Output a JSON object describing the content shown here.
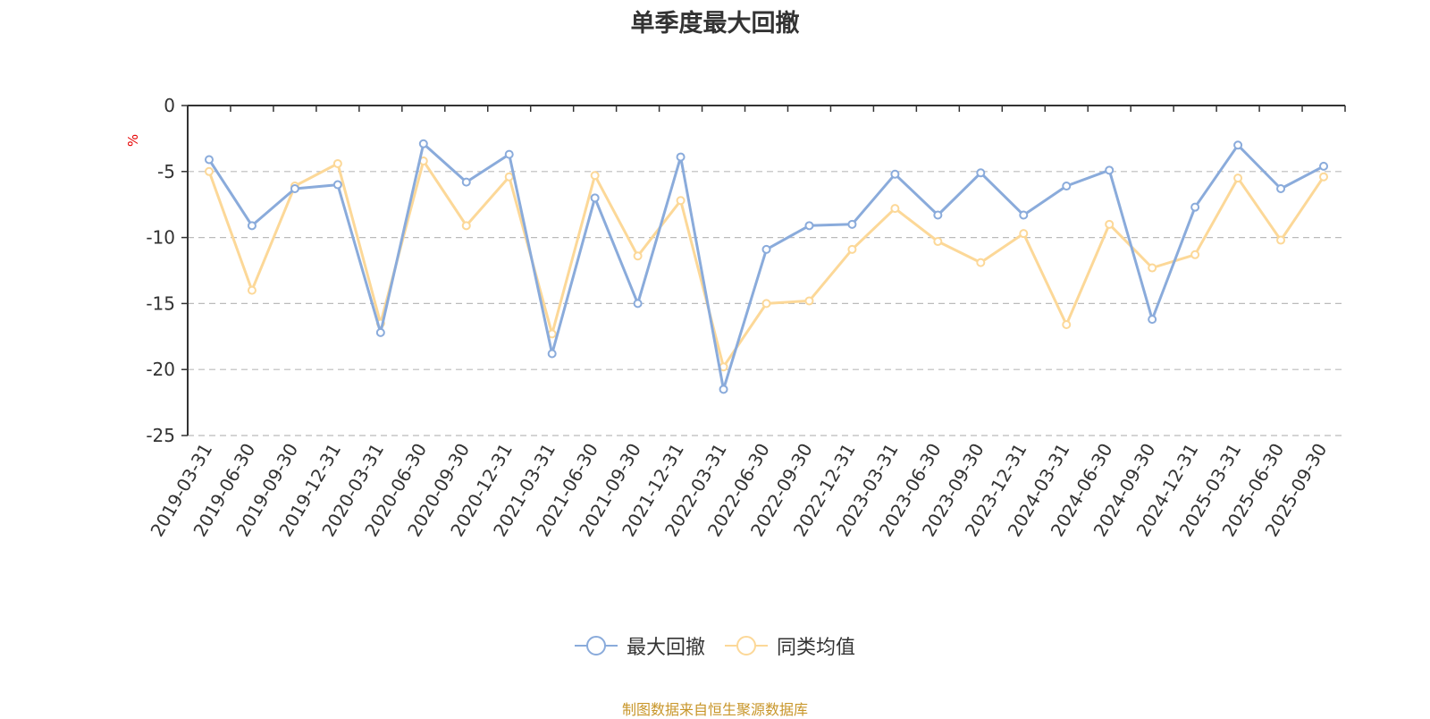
{
  "title": "单季度最大回撤",
  "unit_label": "%",
  "source_text": "制图数据来自恒生聚源数据库",
  "colors": {
    "series_1": "#8aabdb",
    "series_2": "#fcd898",
    "axis": "#333333",
    "grid": "#bbbbbb"
  },
  "legend": [
    {
      "label": "最大回撤",
      "color": "#8aabdb"
    },
    {
      "label": "同类均值",
      "color": "#fcd898"
    }
  ],
  "chart_data": {
    "type": "line",
    "title": "单季度最大回撤",
    "ylabel": "%",
    "ylim": [
      -25,
      0
    ],
    "yticks": [
      0,
      -5,
      -10,
      -15,
      -20,
      -25
    ],
    "grid": true,
    "legend_position": "bottom",
    "categories": [
      "2019-03-31",
      "2019-06-30",
      "2019-09-30",
      "2019-12-31",
      "2020-03-31",
      "2020-06-30",
      "2020-09-30",
      "2020-12-31",
      "2021-03-31",
      "2021-06-30",
      "2021-09-30",
      "2021-12-31",
      "2022-03-31",
      "2022-06-30",
      "2022-09-30",
      "2022-12-31",
      "2023-03-31",
      "2023-06-30",
      "2023-09-30",
      "2023-12-31",
      "2024-03-31",
      "2024-06-30",
      "2024-09-30",
      "2024-12-31",
      "2025-03-31",
      "2025-06-30",
      "2025-09-30"
    ],
    "series": [
      {
        "name": "最大回撤",
        "values": [
          -4.1,
          -9.1,
          -6.3,
          -6.0,
          -17.2,
          -2.9,
          -5.8,
          -3.7,
          -18.8,
          -7.0,
          -15.0,
          -3.9,
          -21.5,
          -10.9,
          -9.1,
          -9.0,
          -5.2,
          -8.3,
          -5.1,
          -8.3,
          -6.1,
          -4.9,
          -16.2,
          -7.7,
          -3.0,
          -6.3,
          -4.6
        ]
      },
      {
        "name": "同类均值",
        "values": [
          -5.0,
          -14.0,
          -6.1,
          -4.4,
          -16.5,
          -4.2,
          -9.1,
          -5.4,
          -17.3,
          -5.3,
          -11.4,
          -7.2,
          -19.8,
          -15.0,
          -14.8,
          -10.9,
          -7.8,
          -10.3,
          -11.9,
          -9.7,
          -16.6,
          -9.0,
          -12.3,
          -11.3,
          -5.5,
          -10.2,
          -5.4
        ]
      }
    ]
  }
}
